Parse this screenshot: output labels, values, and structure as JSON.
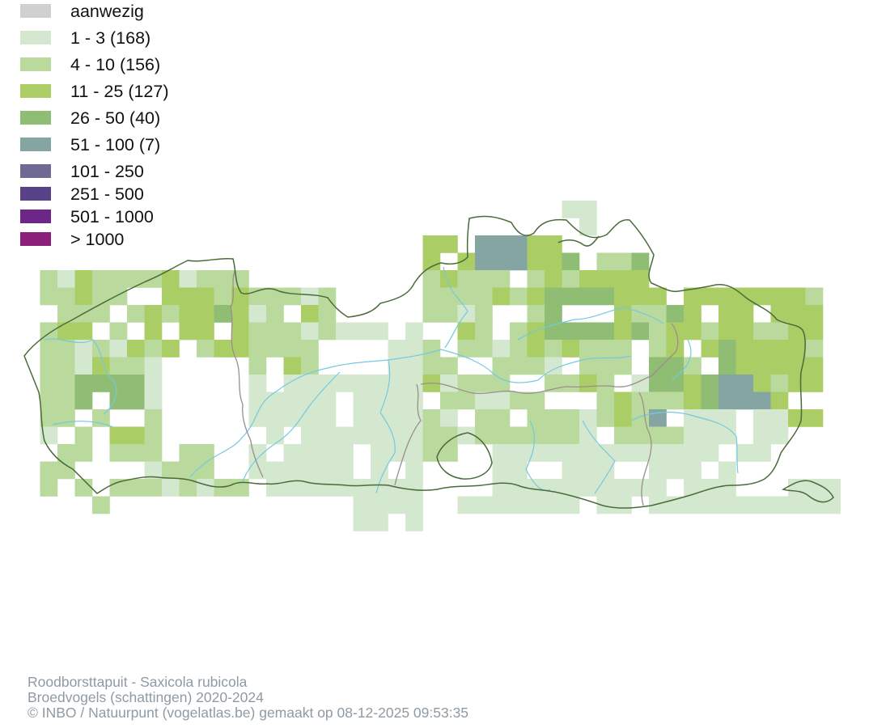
{
  "legend": {
    "items": [
      {
        "label": "aanwezig",
        "color": "#d0d0d0"
      },
      {
        "label": "1 - 3 (168)",
        "color": "#d4e8cf"
      },
      {
        "label": "4 - 10 (156)",
        "color": "#b9da9c"
      },
      {
        "label": "11 - 25 (127)",
        "color": "#abcd66"
      },
      {
        "label": "26 - 50 (40)",
        "color": "#8fbd74"
      },
      {
        "label": "51 - 100 (7)",
        "color": "#85a5a3"
      },
      {
        "label": "101 - 250",
        "color": "#6f6a93"
      },
      {
        "label": "251 - 500",
        "color": "#574287"
      },
      {
        "label": "501 - 1000",
        "color": "#6c2688"
      },
      {
        "label": "> 1000",
        "color": "#8b1f7a"
      }
    ]
  },
  "map": {
    "boundary_color": "#4a6b3a",
    "province_border_color": "#9a8e8e",
    "river_color": "#74c9e0"
  },
  "credits": {
    "line1": "Roodborsttapuit - Saxicola rubicola",
    "line2": "Broedvogels (schattingen) 2020-2024",
    "line3": "© INBO / Natuurpunt (vogelatlas.be) gemaakt op 08-12-2025 09:53:35"
  }
}
